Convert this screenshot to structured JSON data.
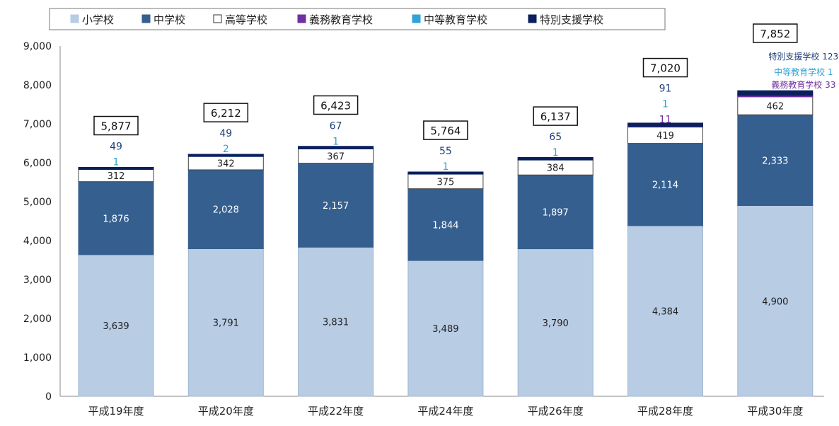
{
  "chart_data": {
    "type": "bar",
    "stacked": true,
    "categories": [
      "平成19年度",
      "平成20年度",
      "平成22年度",
      "平成24年度",
      "平成26年度",
      "平成28年度",
      "平成30年度"
    ],
    "series": [
      {
        "name": "小学校",
        "color": "#b8cce4",
        "values": [
          3639,
          3791,
          3831,
          3489,
          3790,
          4384,
          4900
        ],
        "labels": [
          "3,639",
          "3,791",
          "3,831",
          "3,489",
          "3,790",
          "4,384",
          "4,900"
        ]
      },
      {
        "name": "中学校",
        "color": "#355f8f",
        "values": [
          1876,
          2028,
          2157,
          1844,
          1897,
          2114,
          2333
        ],
        "labels": [
          "1,876",
          "2,028",
          "2,157",
          "1,844",
          "1,897",
          "2,114",
          "2,333"
        ]
      },
      {
        "name": "高等学校",
        "color": "#ffffff",
        "values": [
          312,
          342,
          367,
          375,
          384,
          419,
          462
        ],
        "labels": [
          "312",
          "342",
          "367",
          "375",
          "384",
          "419",
          "462"
        ]
      },
      {
        "name": "義務教育学校",
        "color": "#7030a0",
        "values": [
          0,
          0,
          0,
          0,
          0,
          11,
          33
        ],
        "labels": [
          "",
          "",
          "",
          "",
          "",
          "11",
          "義務教育学校 33"
        ]
      },
      {
        "name": "中等教育学校",
        "color": "#2fa3d8",
        "values": [
          1,
          2,
          1,
          1,
          1,
          1,
          1
        ],
        "labels": [
          "1",
          "2",
          "1",
          "1",
          "1",
          "1",
          "中等教育学校 1"
        ]
      },
      {
        "name": "特別支援学校",
        "color": "#0b1f5c",
        "values": [
          49,
          49,
          67,
          55,
          65,
          91,
          123
        ],
        "labels": [
          "49",
          "49",
          "67",
          "55",
          "65",
          "91",
          "特別支援学校 123"
        ]
      }
    ],
    "totals": [
      "5,877",
      "6,212",
      "6,423",
      "5,764",
      "6,137",
      "7,020",
      "7,852"
    ],
    "y_ticks": [
      "0",
      "1,000",
      "2,000",
      "3,000",
      "4,000",
      "5,000",
      "6,000",
      "7,000",
      "8,000",
      "9,000"
    ],
    "ylim": [
      0,
      9000
    ],
    "grid": false,
    "legend_position": "top-left",
    "title": "",
    "xlabel": "",
    "ylabel": ""
  }
}
